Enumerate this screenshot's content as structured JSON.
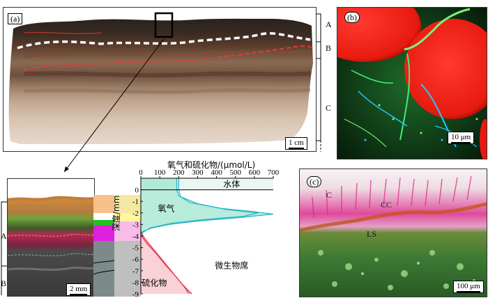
{
  "panels": {
    "a": {
      "label": "(a)",
      "zone_labels": [
        "A",
        "B",
        "C"
      ],
      "scale_label": "1 cm"
    },
    "inset": {
      "zone_labels": [
        "A",
        "B"
      ],
      "scale_label": "2 mm"
    },
    "b": {
      "label": "(b)",
      "scale_label": "10 μm"
    },
    "c": {
      "label": "(c)",
      "labels": [
        "C",
        "CC",
        "LS"
      ],
      "scale_label": "100 μm"
    }
  },
  "chart_data": {
    "type": "line",
    "xlabel": "氧气和硫化物/(μmol/L)",
    "ylabel": "深度/mm",
    "x_ticks": [
      0,
      100,
      200,
      300,
      400,
      500,
      600,
      700
    ],
    "y_ticks": [
      0,
      -1,
      -2,
      -3,
      -4,
      -5,
      -6,
      -7,
      -8,
      -9
    ],
    "xlim": [
      0,
      700
    ],
    "ylim": [
      -9,
      1
    ],
    "annotations": [
      "水体",
      "氧气",
      "微生物席",
      "硫化物"
    ],
    "series": [
      {
        "name": "氧气",
        "color": "#29b6c8",
        "points": [
          [
            190,
            1
          ],
          [
            190,
            0
          ],
          [
            200,
            -0.5
          ],
          [
            260,
            -1.1
          ],
          [
            420,
            -1.6
          ],
          [
            600,
            -1.9
          ],
          [
            700,
            -2.1
          ],
          [
            520,
            -2.4
          ],
          [
            300,
            -2.7
          ],
          [
            150,
            -3.0
          ],
          [
            60,
            -3.3
          ],
          [
            10,
            -3.6
          ],
          [
            0,
            -4.0
          ]
        ]
      },
      {
        "name": "氧气",
        "color": "#29b6c8",
        "points": [
          [
            200,
            1
          ],
          [
            200,
            0
          ],
          [
            210,
            -0.6
          ],
          [
            300,
            -1.2
          ],
          [
            450,
            -1.7
          ],
          [
            620,
            -2.0
          ],
          [
            540,
            -2.3
          ],
          [
            320,
            -2.6
          ],
          [
            160,
            -2.9
          ],
          [
            50,
            -3.3
          ],
          [
            0,
            -3.8
          ]
        ]
      },
      {
        "name": "硫化物",
        "color": "#e03c52",
        "points": [
          [
            0,
            -3.6
          ],
          [
            20,
            -4.2
          ],
          [
            60,
            -5.0
          ],
          [
            110,
            -6.0
          ],
          [
            160,
            -7.0
          ],
          [
            210,
            -8.0
          ],
          [
            250,
            -8.7
          ],
          [
            270,
            -9.0
          ]
        ]
      },
      {
        "name": "硫化物",
        "color": "#e03c52",
        "points": [
          [
            0,
            -3.9
          ],
          [
            30,
            -4.6
          ],
          [
            80,
            -5.5
          ],
          [
            130,
            -6.5
          ],
          [
            185,
            -7.5
          ],
          [
            230,
            -8.4
          ],
          [
            255,
            -9.0
          ]
        ]
      }
    ]
  }
}
